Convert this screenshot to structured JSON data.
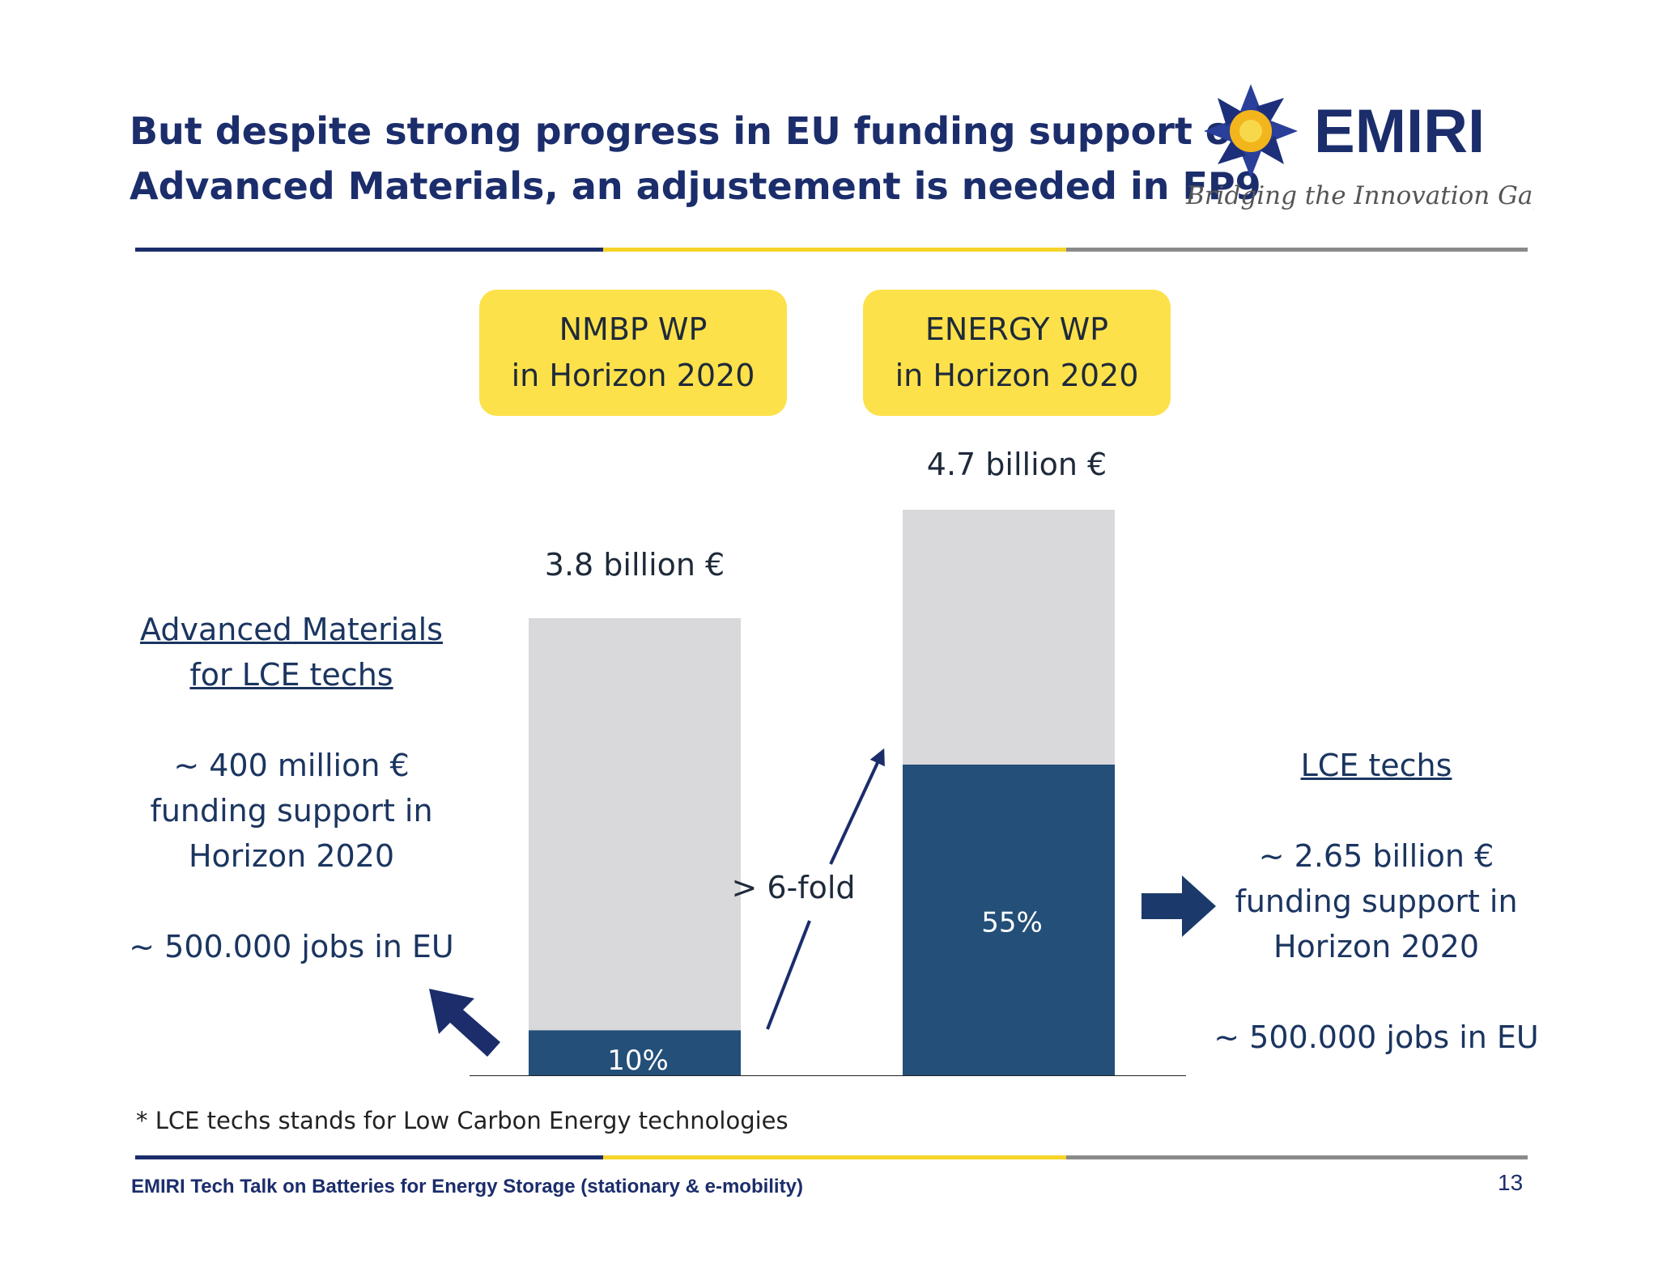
{
  "slide": {
    "title_line1": "But despite strong progress in EU funding support of",
    "title_line2": "Advanced Materials, an adjustement is needed in FP9",
    "logo_name": "EMIRI",
    "logo_tagline": "Bridging the Innovation Gap",
    "footnote": "* LCE techs stands for Low Carbon Energy technologies",
    "footer": "EMIRI Tech Talk on Batteries for Energy Storage (stationary & e-mobility)",
    "page_number": "13",
    "colors": {
      "navy": "#1b2d6b",
      "yellow": "#fde14a",
      "bar_light": "#d9d8db",
      "bar_dark": "#234f78",
      "rule_blue": "#1b2d6b",
      "rule_yellow": "#f6d32a",
      "rule_gray": "#8a8a8a"
    }
  },
  "left_panel": {
    "heading_line1": "Advanced Materials",
    "heading_line2": "for LCE techs",
    "funding_line1": "~ 400 million €",
    "funding_line2": "funding support in",
    "funding_line3": "Horizon 2020",
    "jobs": "~ 500.000 jobs in EU"
  },
  "right_panel": {
    "heading": "LCE techs",
    "funding_line1": "~ 2.65 billion €",
    "funding_line2": "funding support in",
    "funding_line3": "Horizon 2020",
    "jobs": "~ 500.000 jobs in EU"
  },
  "chart_data": {
    "type": "bar",
    "stacked": true,
    "unit": "billion €",
    "categories": [
      {
        "line1": "NMBP WP",
        "line2": "in Horizon 2020"
      },
      {
        "line1": "ENERGY WP",
        "line2": "in Horizon 2020"
      }
    ],
    "totals": [
      3.8,
      4.7
    ],
    "total_labels": [
      "3.8 billion €",
      "4.7 billion €"
    ],
    "shares": [
      0.1,
      0.55
    ],
    "share_labels": [
      "10%",
      "55%"
    ],
    "ylim": [
      0,
      4.7
    ],
    "annotation": "> 6-fold",
    "grid": false,
    "legend": "none"
  }
}
